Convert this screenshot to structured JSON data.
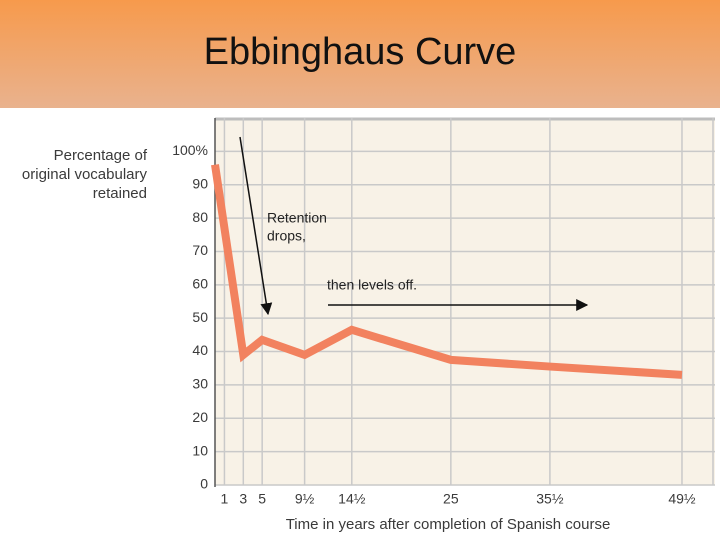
{
  "chart_data": {
    "type": "line",
    "title": "Ebbinghaus Curve",
    "ylabel": [
      "Percentage of",
      "original vocabulary",
      "retained"
    ],
    "xlabel": "Time in years after completion of Spanish course",
    "annotations": [
      [
        "Retention",
        "drops,"
      ],
      [
        "then levels off."
      ]
    ],
    "x": [
      0,
      3,
      5,
      9.5,
      14.5,
      25,
      35.5,
      49.5
    ],
    "values": [
      96,
      39,
      43.5,
      39,
      46.5,
      37.5,
      35.5,
      33
    ],
    "color": "#f2825f",
    "xlim": [
      0,
      53
    ],
    "ylim": [
      0,
      110
    ],
    "xticks": [
      1,
      3,
      5,
      {
        "value": 9.5,
        "label": "9½"
      },
      {
        "value": 14.5,
        "label": "14½"
      },
      25,
      {
        "value": 35.5,
        "label": "35½"
      },
      {
        "value": 49.5,
        "label": "49½"
      }
    ],
    "yticks": [
      0,
      10,
      20,
      30,
      40,
      50,
      60,
      70,
      80,
      90,
      {
        "value": 100,
        "label": "100%"
      }
    ],
    "grid": true
  }
}
